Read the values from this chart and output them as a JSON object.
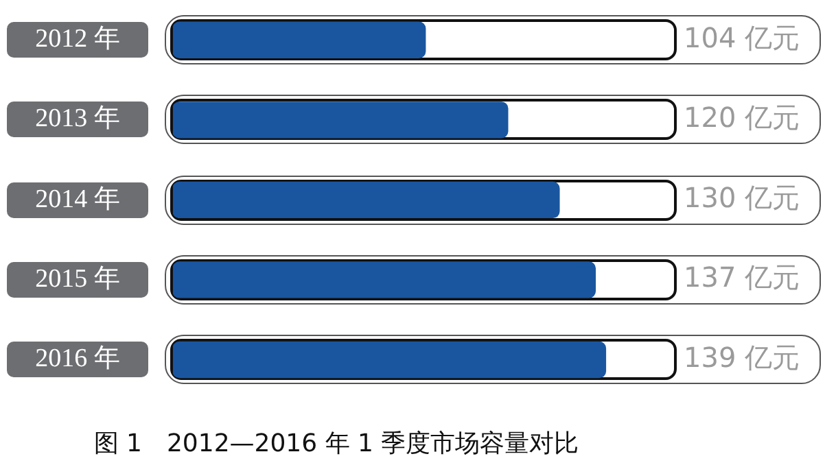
{
  "chart_data": {
    "type": "bar",
    "orientation": "horizontal",
    "title": "图 1　2012—2016 年 1 季度市场容量对比",
    "categories": [
      "2012 年",
      "2013 年",
      "2014 年",
      "2015 年",
      "2016 年"
    ],
    "values": [
      104,
      120,
      130,
      137,
      139
    ],
    "value_labels": [
      "104 亿元",
      "120 亿元",
      "130 亿元",
      "137 亿元",
      "139 亿元"
    ],
    "color": "#1a56a0",
    "xlim": [
      55,
      152
    ],
    "tick_labels": "y",
    "legend": false
  }
}
